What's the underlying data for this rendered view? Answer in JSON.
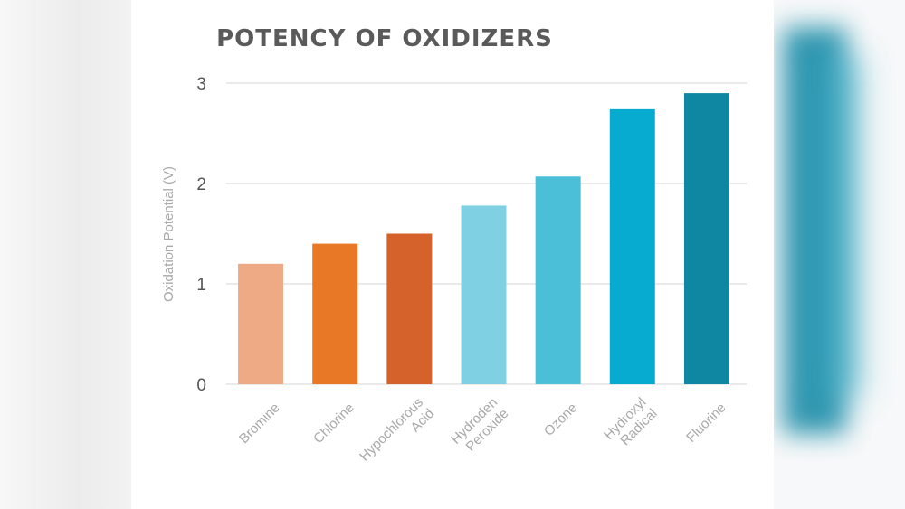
{
  "chart_data": {
    "type": "bar",
    "title": "POTENCY OF OXIDIZERS",
    "xlabel": "",
    "ylabel": "Oxidation Potential (V)",
    "ylim": [
      0,
      3
    ],
    "yticks": [
      0,
      1,
      2,
      3
    ],
    "grid": true,
    "categories": [
      "Bromine",
      "Chlorine",
      "Hypochlorous Acid",
      "Hydroden Peroxide",
      "Ozone",
      "Hydroxyl Radical",
      "Fluorine"
    ],
    "category_lines": [
      [
        "Bromine"
      ],
      [
        "Chlorine"
      ],
      [
        "Hypochlorous",
        "Acid"
      ],
      [
        "Hydroden",
        "Peroxide"
      ],
      [
        "Ozone"
      ],
      [
        "Hydroxyl",
        "Radical"
      ],
      [
        "Fluorine"
      ]
    ],
    "values": [
      1.2,
      1.4,
      1.5,
      1.78,
      2.07,
      2.74,
      2.9
    ],
    "colors": [
      "#eea985",
      "#e87826",
      "#d4622a",
      "#7fd0e3",
      "#4bbfd8",
      "#07abd0",
      "#0f87a3"
    ]
  }
}
